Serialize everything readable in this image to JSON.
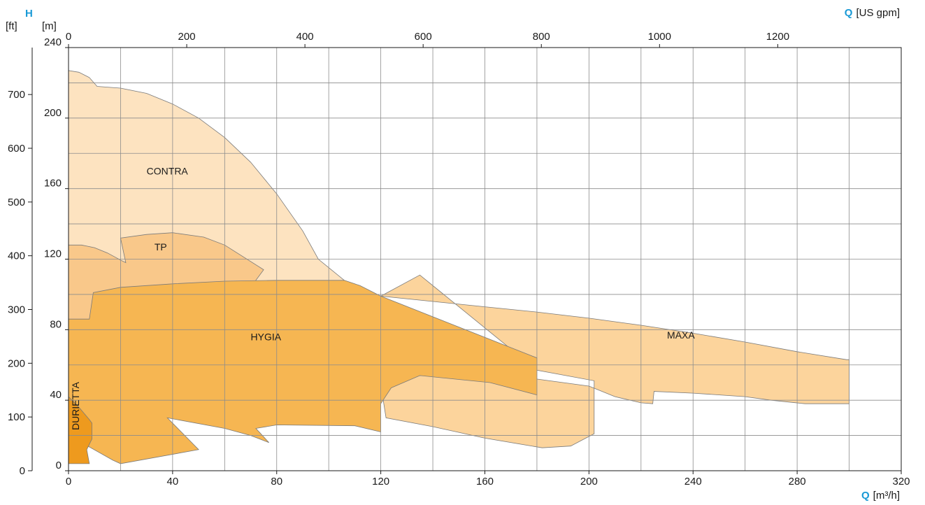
{
  "chart_data": {
    "type": "area",
    "x_axis": {
      "symbol": "Q",
      "unit": "[m³/h]",
      "range": [
        0,
        320
      ],
      "ticks": [
        0,
        40,
        80,
        120,
        160,
        200,
        240,
        280,
        320
      ],
      "grid_step": 20
    },
    "x2_axis": {
      "symbol": "Q",
      "unit": "[US gpm]",
      "ticks": [
        0,
        200,
        400,
        600,
        800,
        1000,
        1200
      ],
      "gpm_per_m3h": 4.4029
    },
    "y_axis": {
      "symbol": "H",
      "unit": "[m]",
      "range": [
        0,
        240
      ],
      "ticks": [
        0,
        40,
        80,
        120,
        160,
        200,
        240
      ],
      "grid_step": 20
    },
    "y2_axis": {
      "unit": "[ft]",
      "ticks": [
        0,
        100,
        200,
        300,
        400,
        500,
        600,
        700
      ],
      "ft_per_m": 3.2808
    },
    "grid": true,
    "accent_color": "#1a9ad6",
    "series": [
      {
        "name": "CONTRA",
        "color": "#fde3c0",
        "label_at": [
          30,
          168
        ],
        "points": [
          [
            0,
            0
          ],
          [
            0,
            227
          ],
          [
            4,
            226
          ],
          [
            8,
            223
          ],
          [
            11,
            218
          ],
          [
            20,
            217
          ],
          [
            30,
            214
          ],
          [
            40,
            208
          ],
          [
            50,
            200
          ],
          [
            60,
            189
          ],
          [
            70,
            175
          ],
          [
            80,
            157
          ],
          [
            90,
            136
          ],
          [
            96,
            120
          ],
          [
            106,
            108
          ],
          [
            80,
            80
          ],
          [
            0,
            80
          ]
        ]
      },
      {
        "name": "TP",
        "color": "#f9c88a",
        "label_at": [
          33,
          125
        ],
        "points": [
          [
            0,
            0
          ],
          [
            0,
            128
          ],
          [
            5,
            128
          ],
          [
            10,
            126.5
          ],
          [
            15,
            123.5
          ],
          [
            20,
            119.5
          ],
          [
            22,
            118
          ],
          [
            20,
            132
          ],
          [
            30,
            134
          ],
          [
            40,
            135
          ],
          [
            52,
            132.5
          ],
          [
            60,
            128
          ],
          [
            75,
            114
          ],
          [
            48,
            60
          ],
          [
            0,
            60
          ]
        ]
      },
      {
        "name": "MAXA",
        "color": "#fcd49c",
        "label_at": [
          230,
          75
        ],
        "points": [
          [
            120,
            99
          ],
          [
            140,
            96
          ],
          [
            160,
            93
          ],
          [
            180,
            90
          ],
          [
            200,
            86.5
          ],
          [
            220,
            82.5
          ],
          [
            240,
            78
          ],
          [
            260,
            73
          ],
          [
            280,
            67.5
          ],
          [
            299,
            63
          ],
          [
            300,
            63
          ],
          [
            300,
            38
          ],
          [
            283,
            38
          ],
          [
            270,
            40
          ],
          [
            260,
            42
          ],
          [
            240,
            44
          ],
          [
            225,
            45
          ],
          [
            224.5,
            38
          ],
          [
            220,
            38.5
          ],
          [
            210,
            42
          ],
          [
            200,
            48
          ],
          [
            170,
            54
          ],
          [
            140,
            54
          ],
          [
            135,
            54
          ],
          [
            120,
            49
          ],
          [
            122,
            30
          ],
          [
            140,
            25
          ],
          [
            160,
            18.5
          ],
          [
            182,
            13
          ],
          [
            193,
            14
          ],
          [
            202,
            21
          ],
          [
            202,
            51
          ],
          [
            180,
            57
          ],
          [
            135,
            111
          ],
          [
            120,
            99
          ]
        ]
      },
      {
        "name": "HYGIA",
        "color": "#f6b652",
        "label_at": [
          70,
          74
        ],
        "points": [
          [
            0,
            0
          ],
          [
            0,
            86
          ],
          [
            8,
            86
          ],
          [
            9.5,
            101
          ],
          [
            20,
            104
          ],
          [
            40,
            106
          ],
          [
            60,
            107.5
          ],
          [
            80,
            108
          ],
          [
            95,
            108
          ],
          [
            106,
            108
          ],
          [
            112,
            105
          ],
          [
            120,
            99
          ],
          [
            180,
            64
          ],
          [
            180,
            43
          ],
          [
            162,
            50
          ],
          [
            135,
            54
          ],
          [
            124,
            47
          ],
          [
            120,
            38
          ],
          [
            120,
            22
          ],
          [
            110,
            25.5
          ],
          [
            80,
            26
          ],
          [
            72,
            24
          ],
          [
            77,
            16
          ],
          [
            70,
            20
          ],
          [
            60,
            24
          ],
          [
            38,
            30
          ],
          [
            50,
            12
          ],
          [
            20,
            4
          ],
          [
            17,
            6
          ],
          [
            5,
            16
          ],
          [
            0,
            16
          ]
        ]
      },
      {
        "name": "DURIETTA",
        "color": "#ee9a1e",
        "label_at": [
          4,
          23
        ],
        "label_rotate": -90,
        "points": [
          [
            0,
            4
          ],
          [
            0,
            42
          ],
          [
            4,
            36
          ],
          [
            8,
            29
          ],
          [
            9,
            27
          ],
          [
            9,
            18
          ],
          [
            7,
            12
          ],
          [
            8,
            4
          ]
        ]
      }
    ]
  }
}
